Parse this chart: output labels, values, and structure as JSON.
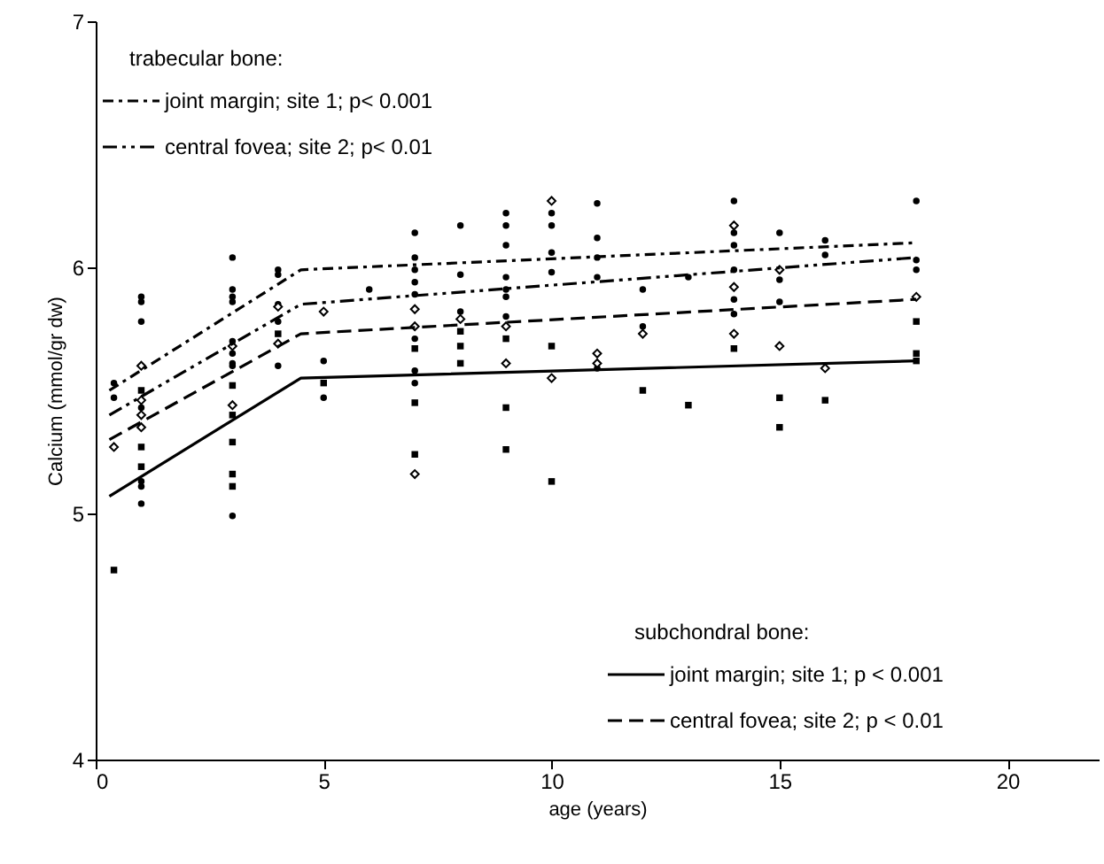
{
  "chart_data": {
    "type": "scatter",
    "xlabel": "age (years)",
    "ylabel": "Calcium (mmol/gr dw)",
    "xlim": [
      0,
      22
    ],
    "xticks": [
      0,
      5,
      10,
      15,
      20
    ],
    "ylim": [
      4,
      7
    ],
    "yticks": [
      4,
      5,
      6,
      7
    ],
    "grid": false,
    "legend": [
      "top left",
      "bottom right"
    ],
    "annotations": [
      "trabecular bone:",
      "subchondral bone:"
    ],
    "series": [
      {
        "marker": "circle",
        "color": "#000000",
        "x": [
          0.4,
          0.4,
          1,
          1,
          1,
          1,
          1,
          1,
          1,
          3,
          3,
          3,
          3,
          3,
          3,
          3,
          3,
          3,
          4,
          4,
          4,
          4,
          4,
          5,
          5,
          6,
          7,
          7,
          7,
          7,
          7,
          7,
          7,
          7,
          8,
          8,
          8,
          9,
          9,
          9,
          9,
          9,
          9,
          9,
          10,
          10,
          10,
          10,
          11,
          11,
          11,
          11,
          11,
          12,
          12,
          13,
          14,
          14,
          14,
          14,
          14,
          14,
          15,
          15,
          15,
          16,
          16,
          18,
          18,
          18
        ],
        "values": [
          5.53,
          5.47,
          5.88,
          5.86,
          5.78,
          5.43,
          5.13,
          5.11,
          5.04,
          6.04,
          5.91,
          5.88,
          5.86,
          5.7,
          5.65,
          5.61,
          5.6,
          4.99,
          5.99,
          5.97,
          5.85,
          5.78,
          5.6,
          5.62,
          5.47,
          5.91,
          6.14,
          6.04,
          5.99,
          5.94,
          5.89,
          5.71,
          5.58,
          5.53,
          6.17,
          5.97,
          5.82,
          6.22,
          6.17,
          6.09,
          5.96,
          5.91,
          5.88,
          5.8,
          6.22,
          6.17,
          6.06,
          5.98,
          6.26,
          6.12,
          6.04,
          5.96,
          5.59,
          5.91,
          5.76,
          5.96,
          6.27,
          6.14,
          6.09,
          5.99,
          5.87,
          5.81,
          6.14,
          5.95,
          5.86,
          6.11,
          6.05,
          6.27,
          6.03,
          5.99
        ]
      },
      {
        "marker": "square",
        "color": "#000000",
        "x": [
          0.4,
          1,
          1,
          1,
          3,
          3,
          3,
          3,
          3,
          4,
          5,
          7,
          7,
          7,
          8,
          8,
          8,
          9,
          9,
          9,
          10,
          10,
          12,
          13,
          14,
          15,
          15,
          16,
          18,
          18,
          18
        ],
        "values": [
          4.77,
          5.5,
          5.27,
          5.19,
          5.52,
          5.4,
          5.29,
          5.16,
          5.11,
          5.73,
          5.53,
          5.67,
          5.45,
          5.24,
          5.74,
          5.68,
          5.61,
          5.71,
          5.43,
          5.26,
          5.68,
          5.13,
          5.5,
          5.44,
          5.67,
          5.47,
          5.35,
          5.46,
          5.78,
          5.65,
          5.62
        ]
      },
      {
        "marker": "diamond",
        "color": "#000000",
        "x": [
          0.4,
          1,
          1,
          1,
          1,
          3,
          3,
          4,
          4,
          5,
          7,
          7,
          7,
          8,
          9,
          9,
          10,
          10,
          11,
          11,
          12,
          14,
          14,
          14,
          15,
          15,
          16,
          18
        ],
        "values": [
          5.27,
          5.6,
          5.46,
          5.4,
          5.35,
          5.68,
          5.44,
          5.84,
          5.69,
          5.82,
          5.83,
          5.76,
          5.16,
          5.79,
          5.76,
          5.61,
          6.27,
          5.55,
          5.65,
          5.61,
          5.73,
          6.17,
          5.92,
          5.73,
          5.99,
          5.68,
          5.59,
          5.88
        ]
      },
      {
        "type": "line",
        "name": "joint margin; site 1; p< 0.001",
        "line_style": "dashdot",
        "color": "#000000",
        "x": [
          0.3,
          4.5,
          18
        ],
        "values": [
          5.5,
          5.99,
          6.1
        ]
      },
      {
        "type": "line",
        "name": "central fovea; site 2; p< 0.01",
        "line_style": "dashdotdot",
        "color": "#000000",
        "x": [
          0.3,
          4.5,
          18
        ],
        "values": [
          5.4,
          5.85,
          6.04
        ]
      },
      {
        "type": "line",
        "name": "joint margin; site 1; p < 0.001",
        "line_style": "solid",
        "color": "#000000",
        "x": [
          0.3,
          4.5,
          18
        ],
        "values": [
          5.07,
          5.55,
          5.62
        ]
      },
      {
        "type": "line",
        "name": "central fovea; site 2; p < 0.01",
        "line_style": "dashed",
        "color": "#000000",
        "x": [
          0.3,
          4.5,
          18
        ],
        "values": [
          5.3,
          5.73,
          5.87
        ]
      }
    ]
  }
}
